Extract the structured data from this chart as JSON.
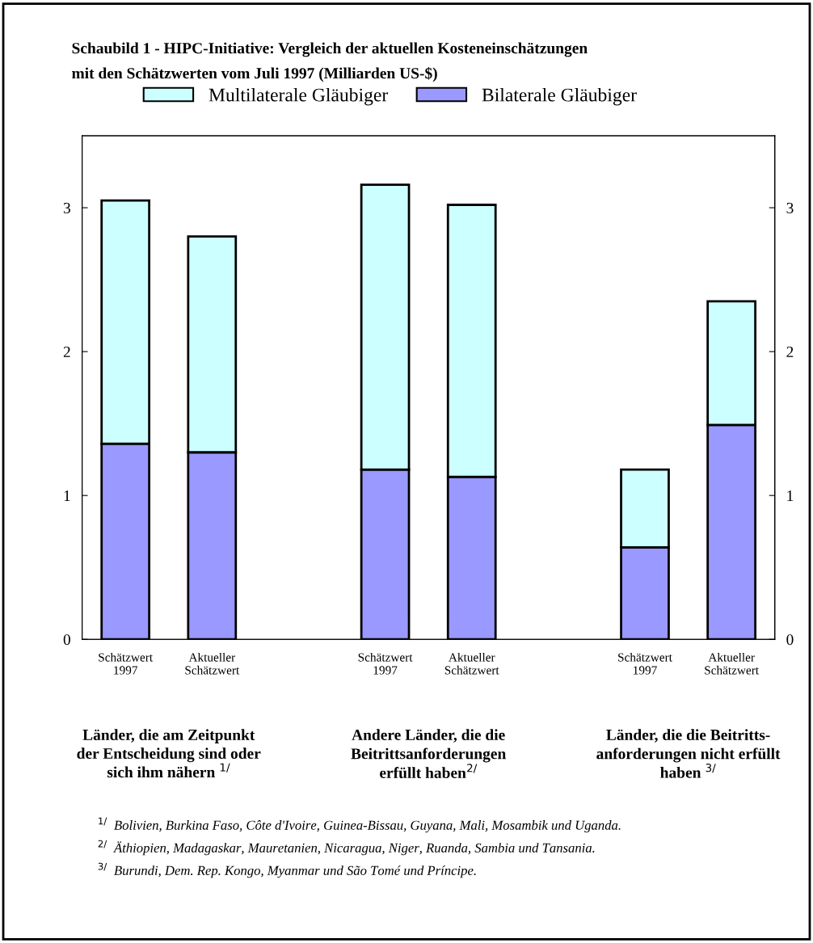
{
  "chart_data": {
    "type": "bar",
    "stacked": true,
    "title": "Schaubild 1 - HIPC-Initiative: Vergleich der aktuellen Kosteneinschätzungen\nmit den Schätzwerten vom Juli 1997 (Milliarden US-$)",
    "categories": [
      "Schätzwert\n1997",
      "Aktueller\nSchätzwert",
      null,
      "Schätzwert\n1997",
      "Aktueller\nSchätzwert",
      null,
      "Schätzwert\n1997",
      "Aktueller\nSchätzwert"
    ],
    "series": [
      {
        "name": "Bilaterale Gläubiger",
        "color": "#9999ff",
        "values": [
          1.36,
          1.3,
          null,
          1.18,
          1.13,
          null,
          0.64,
          1.49
        ]
      },
      {
        "name": "Multilaterale Gläubiger",
        "color": "#ccffff",
        "values": [
          1.69,
          1.5,
          null,
          1.98,
          1.89,
          null,
          0.54,
          0.86
        ]
      }
    ],
    "ylim": [
      0,
      3.5
    ],
    "yticks": [
      0,
      1,
      2,
      3
    ],
    "y2lim": [
      0,
      3.5
    ],
    "y2ticks": [
      0,
      1,
      2,
      3
    ],
    "grid": false,
    "legend": "top",
    "annotations": [
      "Länder, die am Zeitpunkt\nder Entscheidung sind oder\nsich ihm nähern $^{1/}$",
      "Andere Länder, die die\nBeitrittsanforderungen\nerfüllt haben$^{2/}$",
      "Länder, die die Beitritts-\nanforderungen nicht erfüllt\nhaben $^{3/}$",
      "$^{1/}$  Bolivien, Burkina Faso, Côte d'Ivoire, Guinea-Bissau, Guyana, Mali, Mosambik und Uganda.",
      "$^{2/}$  Äthiopien, Madagaskar, Mauretanien, Nicaragua, Niger, Ruanda, Sambia und Tansania.",
      "$^{3/}$  Burundi, Dem. Rep. Kongo, Myanmar und São Tomé und Príncipe."
    ]
  }
}
